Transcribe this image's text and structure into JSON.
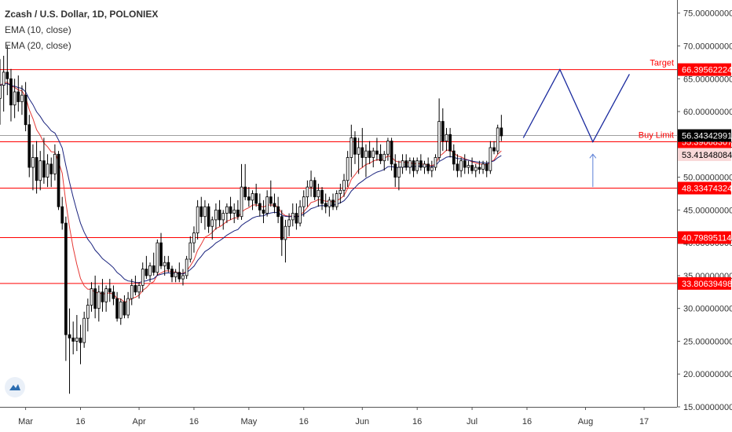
{
  "legend": {
    "title": "Zcash / U.S. Dollar, 1D, POLONIEX",
    "ema10": "EMA (10, close)",
    "ema20": "EMA (20, close)"
  },
  "colors": {
    "candle_up": "#ffffff",
    "candle_down": "#000000",
    "candle_wick": "#000000",
    "ema10": "#e53935",
    "ema20": "#1a237e",
    "level_line": "#ff0000",
    "projection": "#1a2a9e",
    "arrow": "#5b7fd6",
    "current_price_bg": "#000000",
    "label_red_bg": "#ff0000",
    "label_pink_bg": "#f9d9d9"
  },
  "annotations": {
    "target": "Target",
    "buy_limit": "Buy Limit"
  },
  "chart_data": {
    "type": "candlestick",
    "title": "Zcash / U.S. Dollar, 1D, POLONIEX",
    "ylim": [
      15,
      77
    ],
    "y_ticks": [
      "15.00000000",
      "20.00000000",
      "25.00000000",
      "30.00000000",
      "35.00000000",
      "40.00000000",
      "45.00000000",
      "50.00000000",
      "55.00000000",
      "60.00000000",
      "65.00000000",
      "70.00000000",
      "75.00000000"
    ],
    "x_tick_labels": [
      "Mar",
      "16",
      "Apr",
      "16",
      "May",
      "16",
      "Jun",
      "16",
      "Jul",
      "16",
      "Aug",
      "17"
    ],
    "x_tick_dates": [
      "2020-03-01",
      "2020-03-16",
      "2020-04-01",
      "2020-04-16",
      "2020-05-01",
      "2020-05-16",
      "2020-06-01",
      "2020-06-16",
      "2020-07-01",
      "2020-07-16",
      "2020-08-01",
      "2020-08-17"
    ],
    "x_range": [
      "2020-02-23",
      "2020-08-26"
    ],
    "horizontal_levels": [
      {
        "value": 66.39562224,
        "label": "66.39562224",
        "note": "Target"
      },
      {
        "value": 55.39068307,
        "label": "55.39068307",
        "note": "Buy Limit"
      },
      {
        "value": 48.33474324,
        "label": "48.33474324"
      },
      {
        "value": 40.79895114,
        "label": "40.79895114"
      },
      {
        "value": 33.80639498,
        "label": "33.80639498"
      }
    ],
    "current_price": {
      "value": 56.34342991,
      "label": "56.34342991"
    },
    "ema_label": {
      "value": 53.41848084,
      "label": "53.41848084"
    },
    "series": [
      {
        "name": "EMA (10, close)",
        "color": "#e53935"
      },
      {
        "name": "EMA (20, close)",
        "color": "#1a237e"
      }
    ],
    "candles": [
      {
        "date": "2020-02-23",
        "o": 62.0,
        "h": 68.0,
        "l": 58.0,
        "c": 64.0
      },
      {
        "date": "2020-02-24",
        "o": 64.0,
        "h": 68.5,
        "l": 60.0,
        "c": 66.0
      },
      {
        "date": "2020-02-25",
        "o": 66.0,
        "h": 70.0,
        "l": 62.5,
        "c": 65.0
      },
      {
        "date": "2020-02-26",
        "o": 65.0,
        "h": 66.5,
        "l": 58.5,
        "c": 61.0
      },
      {
        "date": "2020-02-27",
        "o": 61.0,
        "h": 65.0,
        "l": 59.0,
        "c": 63.0
      },
      {
        "date": "2020-02-28",
        "o": 63.0,
        "h": 65.5,
        "l": 60.0,
        "c": 61.5
      },
      {
        "date": "2020-02-29",
        "o": 61.5,
        "h": 64.0,
        "l": 59.5,
        "c": 62.5
      },
      {
        "date": "2020-03-01",
        "o": 62.5,
        "h": 64.5,
        "l": 57.0,
        "c": 58.0
      },
      {
        "date": "2020-03-02",
        "o": 58.0,
        "h": 59.5,
        "l": 50.0,
        "c": 51.5
      },
      {
        "date": "2020-03-03",
        "o": 51.5,
        "h": 55.0,
        "l": 48.0,
        "c": 53.0
      },
      {
        "date": "2020-03-04",
        "o": 53.0,
        "h": 55.5,
        "l": 47.5,
        "c": 49.5
      },
      {
        "date": "2020-03-05",
        "o": 49.5,
        "h": 54.0,
        "l": 48.0,
        "c": 52.5
      },
      {
        "date": "2020-03-06",
        "o": 52.5,
        "h": 56.0,
        "l": 49.0,
        "c": 50.0
      },
      {
        "date": "2020-03-07",
        "o": 50.0,
        "h": 53.5,
        "l": 48.5,
        "c": 52.0
      },
      {
        "date": "2020-03-08",
        "o": 52.0,
        "h": 53.0,
        "l": 48.5,
        "c": 50.5
      },
      {
        "date": "2020-03-09",
        "o": 50.5,
        "h": 55.0,
        "l": 49.5,
        "c": 53.5
      },
      {
        "date": "2020-03-10",
        "o": 53.5,
        "h": 54.0,
        "l": 45.0,
        "c": 45.5
      },
      {
        "date": "2020-03-11",
        "o": 45.5,
        "h": 47.0,
        "l": 42.0,
        "c": 43.0
      },
      {
        "date": "2020-03-12",
        "o": 43.0,
        "h": 44.0,
        "l": 22.0,
        "c": 26.0
      },
      {
        "date": "2020-03-13",
        "o": 26.0,
        "h": 30.0,
        "l": 17.0,
        "c": 25.5
      },
      {
        "date": "2020-03-14",
        "o": 25.5,
        "h": 28.0,
        "l": 23.0,
        "c": 25.0
      },
      {
        "date": "2020-03-15",
        "o": 25.0,
        "h": 29.0,
        "l": 23.5,
        "c": 25.5
      },
      {
        "date": "2020-03-16",
        "o": 25.5,
        "h": 27.5,
        "l": 21.5,
        "c": 24.8
      },
      {
        "date": "2020-03-17",
        "o": 24.8,
        "h": 29.5,
        "l": 24.0,
        "c": 28.5
      },
      {
        "date": "2020-03-18",
        "o": 28.5,
        "h": 31.5,
        "l": 26.5,
        "c": 30.5
      },
      {
        "date": "2020-03-19",
        "o": 30.5,
        "h": 34.0,
        "l": 29.5,
        "c": 33.0
      },
      {
        "date": "2020-03-20",
        "o": 33.0,
        "h": 35.0,
        "l": 28.5,
        "c": 30.0
      },
      {
        "date": "2020-03-21",
        "o": 30.0,
        "h": 33.5,
        "l": 28.0,
        "c": 32.5
      },
      {
        "date": "2020-03-22",
        "o": 32.5,
        "h": 34.5,
        "l": 29.5,
        "c": 31.0
      },
      {
        "date": "2020-03-23",
        "o": 31.0,
        "h": 33.5,
        "l": 29.5,
        "c": 33.0
      },
      {
        "date": "2020-03-24",
        "o": 33.0,
        "h": 34.5,
        "l": 31.0,
        "c": 32.5
      },
      {
        "date": "2020-03-25",
        "o": 32.5,
        "h": 33.5,
        "l": 30.5,
        "c": 31.5
      },
      {
        "date": "2020-03-26",
        "o": 31.5,
        "h": 32.5,
        "l": 28.0,
        "c": 28.5
      },
      {
        "date": "2020-03-27",
        "o": 28.5,
        "h": 31.5,
        "l": 27.5,
        "c": 31.0
      },
      {
        "date": "2020-03-28",
        "o": 31.0,
        "h": 32.0,
        "l": 28.5,
        "c": 29.0
      },
      {
        "date": "2020-03-29",
        "o": 29.0,
        "h": 32.5,
        "l": 28.5,
        "c": 31.5
      },
      {
        "date": "2020-03-30",
        "o": 31.5,
        "h": 34.5,
        "l": 30.5,
        "c": 33.5
      },
      {
        "date": "2020-03-31",
        "o": 33.5,
        "h": 35.0,
        "l": 32.0,
        "c": 32.5
      },
      {
        "date": "2020-04-01",
        "o": 32.5,
        "h": 34.0,
        "l": 31.5,
        "c": 33.5
      },
      {
        "date": "2020-04-02",
        "o": 33.5,
        "h": 37.0,
        "l": 32.5,
        "c": 36.0
      },
      {
        "date": "2020-04-03",
        "o": 36.0,
        "h": 38.0,
        "l": 34.5,
        "c": 35.0
      },
      {
        "date": "2020-04-04",
        "o": 35.0,
        "h": 37.0,
        "l": 34.0,
        "c": 36.5
      },
      {
        "date": "2020-04-05",
        "o": 36.5,
        "h": 38.5,
        "l": 35.0,
        "c": 35.5
      },
      {
        "date": "2020-04-06",
        "o": 35.5,
        "h": 40.5,
        "l": 35.0,
        "c": 40.0
      },
      {
        "date": "2020-04-07",
        "o": 40.0,
        "h": 41.5,
        "l": 36.0,
        "c": 36.5
      },
      {
        "date": "2020-04-08",
        "o": 36.5,
        "h": 38.0,
        "l": 35.0,
        "c": 37.0
      },
      {
        "date": "2020-04-09",
        "o": 37.0,
        "h": 38.0,
        "l": 35.5,
        "c": 36.0
      },
      {
        "date": "2020-04-10",
        "o": 36.0,
        "h": 36.5,
        "l": 34.0,
        "c": 34.8
      },
      {
        "date": "2020-04-11",
        "o": 34.8,
        "h": 36.0,
        "l": 34.0,
        "c": 35.5
      },
      {
        "date": "2020-04-12",
        "o": 35.5,
        "h": 37.0,
        "l": 34.0,
        "c": 34.5
      },
      {
        "date": "2020-04-13",
        "o": 34.5,
        "h": 36.0,
        "l": 33.5,
        "c": 35.0
      },
      {
        "date": "2020-04-14",
        "o": 35.0,
        "h": 38.0,
        "l": 34.5,
        "c": 37.5
      },
      {
        "date": "2020-04-15",
        "o": 37.5,
        "h": 41.0,
        "l": 37.0,
        "c": 40.0
      },
      {
        "date": "2020-04-16",
        "o": 40.0,
        "h": 42.5,
        "l": 38.5,
        "c": 41.5
      },
      {
        "date": "2020-04-17",
        "o": 41.5,
        "h": 46.5,
        "l": 40.5,
        "c": 45.5
      },
      {
        "date": "2020-04-18",
        "o": 45.5,
        "h": 47.0,
        "l": 43.0,
        "c": 44.0
      },
      {
        "date": "2020-04-19",
        "o": 44.0,
        "h": 46.5,
        "l": 42.0,
        "c": 45.5
      },
      {
        "date": "2020-04-20",
        "o": 45.5,
        "h": 46.0,
        "l": 41.5,
        "c": 42.5
      },
      {
        "date": "2020-04-21",
        "o": 42.5,
        "h": 44.0,
        "l": 40.5,
        "c": 43.5
      },
      {
        "date": "2020-04-22",
        "o": 43.5,
        "h": 46.0,
        "l": 42.0,
        "c": 45.0
      },
      {
        "date": "2020-04-23",
        "o": 45.0,
        "h": 46.5,
        "l": 42.5,
        "c": 43.5
      },
      {
        "date": "2020-04-24",
        "o": 43.5,
        "h": 45.0,
        "l": 42.0,
        "c": 44.5
      },
      {
        "date": "2020-04-25",
        "o": 44.5,
        "h": 46.0,
        "l": 43.0,
        "c": 45.5
      },
      {
        "date": "2020-04-26",
        "o": 45.5,
        "h": 47.0,
        "l": 43.5,
        "c": 44.5
      },
      {
        "date": "2020-04-27",
        "o": 44.5,
        "h": 46.0,
        "l": 43.0,
        "c": 45.0
      },
      {
        "date": "2020-04-28",
        "o": 45.0,
        "h": 46.5,
        "l": 43.5,
        "c": 44.0
      },
      {
        "date": "2020-04-29",
        "o": 44.0,
        "h": 52.0,
        "l": 43.5,
        "c": 48.5
      },
      {
        "date": "2020-04-30",
        "o": 48.5,
        "h": 52.0,
        "l": 46.5,
        "c": 47.0
      },
      {
        "date": "2020-05-01",
        "o": 47.0,
        "h": 48.5,
        "l": 45.5,
        "c": 46.5
      },
      {
        "date": "2020-05-02",
        "o": 46.5,
        "h": 48.0,
        "l": 45.0,
        "c": 47.5
      },
      {
        "date": "2020-05-03",
        "o": 47.5,
        "h": 49.0,
        "l": 45.5,
        "c": 46.0
      },
      {
        "date": "2020-05-04",
        "o": 46.0,
        "h": 47.5,
        "l": 44.0,
        "c": 45.0
      },
      {
        "date": "2020-05-05",
        "o": 45.0,
        "h": 46.5,
        "l": 43.0,
        "c": 44.5
      },
      {
        "date": "2020-05-06",
        "o": 44.5,
        "h": 48.0,
        "l": 44.0,
        "c": 47.0
      },
      {
        "date": "2020-05-07",
        "o": 47.0,
        "h": 49.5,
        "l": 45.5,
        "c": 46.0
      },
      {
        "date": "2020-05-08",
        "o": 46.0,
        "h": 47.5,
        "l": 44.5,
        "c": 45.5
      },
      {
        "date": "2020-05-09",
        "o": 45.5,
        "h": 47.0,
        "l": 43.0,
        "c": 44.0
      },
      {
        "date": "2020-05-10",
        "o": 44.0,
        "h": 45.0,
        "l": 38.0,
        "c": 40.5
      },
      {
        "date": "2020-05-11",
        "o": 40.5,
        "h": 43.5,
        "l": 37.0,
        "c": 42.5
      },
      {
        "date": "2020-05-12",
        "o": 42.5,
        "h": 44.5,
        "l": 41.0,
        "c": 43.5
      },
      {
        "date": "2020-05-13",
        "o": 43.5,
        "h": 46.0,
        "l": 42.5,
        "c": 44.5
      },
      {
        "date": "2020-05-14",
        "o": 44.5,
        "h": 46.0,
        "l": 42.0,
        "c": 43.0
      },
      {
        "date": "2020-05-15",
        "o": 43.0,
        "h": 46.5,
        "l": 42.5,
        "c": 45.5
      },
      {
        "date": "2020-05-16",
        "o": 45.5,
        "h": 48.0,
        "l": 44.0,
        "c": 47.0
      },
      {
        "date": "2020-05-17",
        "o": 47.0,
        "h": 49.5,
        "l": 45.5,
        "c": 48.5
      },
      {
        "date": "2020-05-18",
        "o": 48.5,
        "h": 51.0,
        "l": 47.0,
        "c": 49.5
      },
      {
        "date": "2020-05-19",
        "o": 49.5,
        "h": 50.0,
        "l": 46.5,
        "c": 47.0
      },
      {
        "date": "2020-05-20",
        "o": 47.0,
        "h": 49.0,
        "l": 45.5,
        "c": 48.0
      },
      {
        "date": "2020-05-21",
        "o": 48.0,
        "h": 48.5,
        "l": 45.0,
        "c": 46.0
      },
      {
        "date": "2020-05-22",
        "o": 46.0,
        "h": 47.5,
        "l": 44.5,
        "c": 45.5
      },
      {
        "date": "2020-05-23",
        "o": 45.5,
        "h": 47.0,
        "l": 44.0,
        "c": 46.5
      },
      {
        "date": "2020-05-24",
        "o": 46.5,
        "h": 47.5,
        "l": 45.0,
        "c": 45.5
      },
      {
        "date": "2020-05-25",
        "o": 45.5,
        "h": 48.0,
        "l": 45.0,
        "c": 47.5
      },
      {
        "date": "2020-05-26",
        "o": 47.5,
        "h": 49.0,
        "l": 46.0,
        "c": 48.0
      },
      {
        "date": "2020-05-27",
        "o": 48.0,
        "h": 50.5,
        "l": 47.0,
        "c": 49.5
      },
      {
        "date": "2020-05-28",
        "o": 49.5,
        "h": 54.0,
        "l": 48.5,
        "c": 53.0
      },
      {
        "date": "2020-05-29",
        "o": 53.0,
        "h": 58.0,
        "l": 50.0,
        "c": 56.0
      },
      {
        "date": "2020-05-30",
        "o": 56.0,
        "h": 57.0,
        "l": 52.0,
        "c": 53.5
      },
      {
        "date": "2020-05-31",
        "o": 53.5,
        "h": 56.0,
        "l": 50.5,
        "c": 54.5
      },
      {
        "date": "2020-06-01",
        "o": 54.5,
        "h": 57.5,
        "l": 51.5,
        "c": 53.0
      },
      {
        "date": "2020-06-02",
        "o": 53.0,
        "h": 55.0,
        "l": 50.0,
        "c": 54.0
      },
      {
        "date": "2020-06-03",
        "o": 54.0,
        "h": 55.5,
        "l": 52.0,
        "c": 53.0
      },
      {
        "date": "2020-06-04",
        "o": 53.0,
        "h": 54.5,
        "l": 51.5,
        "c": 54.0
      },
      {
        "date": "2020-06-05",
        "o": 54.0,
        "h": 56.0,
        "l": 52.5,
        "c": 53.5
      },
      {
        "date": "2020-06-06",
        "o": 53.5,
        "h": 55.0,
        "l": 52.0,
        "c": 52.5
      },
      {
        "date": "2020-06-07",
        "o": 52.5,
        "h": 54.0,
        "l": 51.0,
        "c": 53.5
      },
      {
        "date": "2020-06-08",
        "o": 53.5,
        "h": 56.0,
        "l": 52.5,
        "c": 55.5
      },
      {
        "date": "2020-06-09",
        "o": 55.5,
        "h": 56.0,
        "l": 51.0,
        "c": 52.0
      },
      {
        "date": "2020-06-10",
        "o": 52.0,
        "h": 53.5,
        "l": 48.5,
        "c": 50.0
      },
      {
        "date": "2020-06-11",
        "o": 50.0,
        "h": 52.5,
        "l": 48.0,
        "c": 51.5
      },
      {
        "date": "2020-06-12",
        "o": 51.5,
        "h": 53.5,
        "l": 50.5,
        "c": 52.5
      },
      {
        "date": "2020-06-13",
        "o": 52.5,
        "h": 53.5,
        "l": 51.0,
        "c": 51.5
      },
      {
        "date": "2020-06-14",
        "o": 51.5,
        "h": 53.0,
        "l": 50.5,
        "c": 52.5
      },
      {
        "date": "2020-06-15",
        "o": 52.5,
        "h": 53.0,
        "l": 50.0,
        "c": 51.0
      },
      {
        "date": "2020-06-16",
        "o": 51.0,
        "h": 53.0,
        "l": 50.5,
        "c": 52.5
      },
      {
        "date": "2020-06-17",
        "o": 52.5,
        "h": 53.5,
        "l": 51.0,
        "c": 51.5
      },
      {
        "date": "2020-06-18",
        "o": 51.5,
        "h": 52.5,
        "l": 50.5,
        "c": 52.0
      },
      {
        "date": "2020-06-19",
        "o": 52.0,
        "h": 53.0,
        "l": 50.5,
        "c": 51.0
      },
      {
        "date": "2020-06-20",
        "o": 51.0,
        "h": 52.5,
        "l": 50.0,
        "c": 51.5
      },
      {
        "date": "2020-06-21",
        "o": 51.5,
        "h": 53.5,
        "l": 51.0,
        "c": 53.0
      },
      {
        "date": "2020-06-22",
        "o": 53.0,
        "h": 62.0,
        "l": 52.5,
        "c": 58.5
      },
      {
        "date": "2020-06-23",
        "o": 58.5,
        "h": 60.5,
        "l": 54.0,
        "c": 55.5
      },
      {
        "date": "2020-06-24",
        "o": 55.5,
        "h": 57.5,
        "l": 54.0,
        "c": 56.5
      },
      {
        "date": "2020-06-25",
        "o": 56.5,
        "h": 57.5,
        "l": 53.0,
        "c": 54.0
      },
      {
        "date": "2020-06-26",
        "o": 54.0,
        "h": 55.0,
        "l": 51.0,
        "c": 52.0
      },
      {
        "date": "2020-06-27",
        "o": 52.0,
        "h": 53.5,
        "l": 50.0,
        "c": 51.0
      },
      {
        "date": "2020-06-28",
        "o": 51.0,
        "h": 53.0,
        "l": 50.0,
        "c": 52.5
      },
      {
        "date": "2020-06-29",
        "o": 52.5,
        "h": 53.5,
        "l": 50.5,
        "c": 51.5
      },
      {
        "date": "2020-06-30",
        "o": 51.5,
        "h": 52.5,
        "l": 50.5,
        "c": 51.8
      },
      {
        "date": "2020-07-01",
        "o": 51.8,
        "h": 53.0,
        "l": 50.5,
        "c": 51.0
      },
      {
        "date": "2020-07-02",
        "o": 51.0,
        "h": 52.0,
        "l": 50.0,
        "c": 51.5
      },
      {
        "date": "2020-07-03",
        "o": 51.5,
        "h": 52.5,
        "l": 50.5,
        "c": 51.2
      },
      {
        "date": "2020-07-04",
        "o": 51.2,
        "h": 52.5,
        "l": 50.5,
        "c": 52.0
      },
      {
        "date": "2020-07-05",
        "o": 52.0,
        "h": 52.5,
        "l": 50.0,
        "c": 51.0
      },
      {
        "date": "2020-07-06",
        "o": 51.0,
        "h": 55.5,
        "l": 50.5,
        "c": 54.5
      },
      {
        "date": "2020-07-07",
        "o": 54.5,
        "h": 55.5,
        "l": 53.5,
        "c": 54.0
      },
      {
        "date": "2020-07-08",
        "o": 54.0,
        "h": 58.0,
        "l": 53.5,
        "c": 57.5
      },
      {
        "date": "2020-07-09",
        "o": 57.5,
        "h": 59.5,
        "l": 55.5,
        "c": 56.3
      }
    ],
    "projection_path": [
      {
        "date": "2020-07-15",
        "y": 56.0
      },
      {
        "date": "2020-07-25",
        "y": 66.4
      },
      {
        "date": "2020-08-03",
        "y": 55.4
      },
      {
        "date": "2020-08-13",
        "y": 65.7
      }
    ],
    "arrow": {
      "date": "2020-08-03",
      "from": 48.5,
      "to": 53.5
    }
  }
}
